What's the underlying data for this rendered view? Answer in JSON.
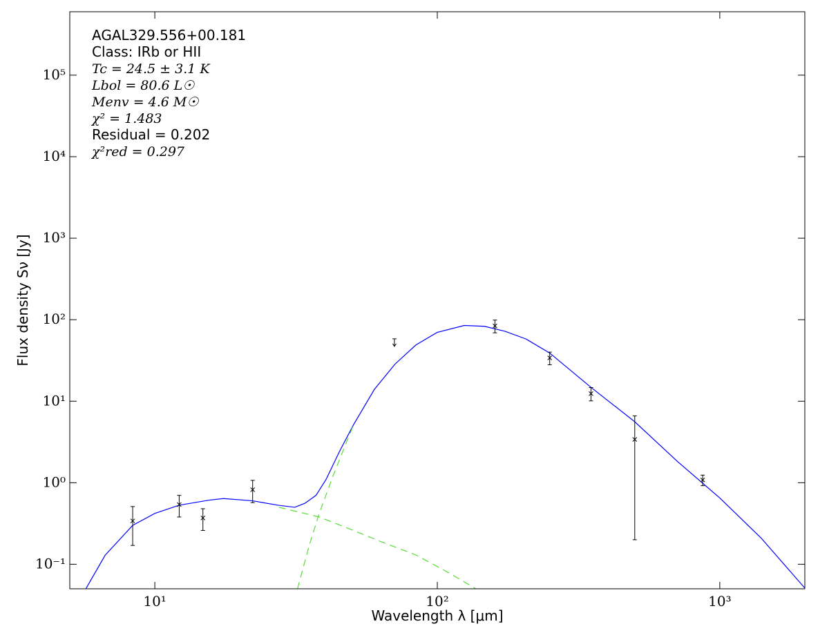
{
  "chart_data": {
    "type": "line",
    "xlabel": "Wavelength λ [μm]",
    "ylabel": "Flux density Sν [Jy]",
    "xscale": "log",
    "yscale": "log",
    "xlim": [
      5,
      2000
    ],
    "ylim": [
      0.05,
      600000
    ],
    "xticks": [
      {
        "value": 10,
        "label": "10¹"
      },
      {
        "value": 100,
        "label": "10²"
      },
      {
        "value": 1000,
        "label": "10³"
      }
    ],
    "yticks": [
      {
        "value": 0.1,
        "label": "10⁻¹"
      },
      {
        "value": 1,
        "label": "10⁰"
      },
      {
        "value": 10,
        "label": "10¹"
      },
      {
        "value": 100,
        "label": "10²"
      },
      {
        "value": 1000,
        "label": "10³"
      },
      {
        "value": 10000,
        "label": "10⁴"
      },
      {
        "value": 100000,
        "label": "10⁵"
      }
    ],
    "annotations": [
      "AGAL329.556+00.181",
      "Class: IRb or HII",
      "Tc = 24.5 ± 3.1 K",
      "Lbol = 80.6 L☉",
      "Menv = 4.6 M☉",
      "χ² = 1.483",
      "Residual = 0.202",
      "χ²red = 0.297"
    ],
    "series": [
      {
        "color": "#0000ff",
        "style": "solid",
        "x": [
          5.7,
          6.67,
          8.35,
          10,
          12.2,
          15.5,
          17.5,
          22.2,
          27.3,
          31.3,
          34,
          37.2,
          40.4,
          45,
          50.6,
          59.9,
          70.9,
          84,
          100,
          124.6,
          147,
          174,
          206,
          250,
          350,
          500,
          711,
          1000,
          1400,
          2000
        ],
        "values": [
          0.05,
          0.129,
          0.3,
          0.42,
          0.53,
          0.61,
          0.64,
          0.6,
          0.53,
          0.5,
          0.56,
          0.7,
          1.1,
          2.4,
          5.2,
          14,
          28.6,
          49,
          70,
          85,
          83,
          72,
          58,
          39,
          14.8,
          5.6,
          1.8,
          0.65,
          0.21,
          0.051
        ]
      },
      {
        "color": "#55dd33",
        "style": "dashed",
        "x": [
          27.5,
          38.2,
          47.8,
          63,
          84,
          111,
          137
        ],
        "values": [
          0.5,
          0.38,
          0.28,
          0.19,
          0.13,
          0.077,
          0.05
        ]
      },
      {
        "color": "#55dd33",
        "style": "dashed",
        "x": [
          32,
          35.2,
          38.2,
          42.7,
          47.8,
          50.6
        ],
        "values": [
          0.05,
          0.17,
          0.42,
          1.2,
          3.2,
          5.2
        ]
      }
    ],
    "points": {
      "color": "#000000",
      "x": [
        8.35,
        12.2,
        14.8,
        22.2,
        160,
        250,
        350,
        500,
        870
      ],
      "values": [
        0.34,
        0.54,
        0.37,
        0.82,
        84,
        34,
        12.4,
        3.4,
        1.08
      ],
      "errors": [
        0.17,
        0.16,
        0.11,
        0.25,
        15,
        6,
        2.3,
        3.2,
        0.16
      ]
    },
    "upper_limits": {
      "color": "#000000",
      "x": [
        70.5
      ],
      "values": [
        55
      ]
    }
  }
}
